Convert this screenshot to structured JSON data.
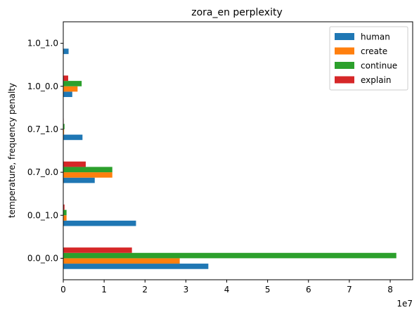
{
  "chart_data": {
    "type": "bar",
    "orientation": "horizontal",
    "title": "zora_en perplexity",
    "xlabel": "",
    "ylabel": "temperature, frequency penalty",
    "x_offset_label": "1e7",
    "x_ticks": [
      0,
      1,
      2,
      3,
      4,
      5,
      6,
      7,
      8
    ],
    "xlim": [
      0,
      8.55
    ],
    "categories": [
      "0.0_0.0",
      "0.0_1.0",
      "0.7_0.0",
      "0.7_1.0",
      "1.0_0.0",
      "1.0_1.0"
    ],
    "series": [
      {
        "name": "human",
        "color": "#1f77b4",
        "values": [
          3.55,
          1.78,
          0.77,
          0.47,
          0.22,
          0.13
        ]
      },
      {
        "name": "create",
        "color": "#ff7f0e",
        "values": [
          2.85,
          0.08,
          1.2,
          0.02,
          0.35,
          0.0
        ]
      },
      {
        "name": "continue",
        "color": "#2ca02c",
        "values": [
          8.15,
          0.08,
          1.2,
          0.03,
          0.45,
          0.0
        ]
      },
      {
        "name": "explain",
        "color": "#d62728",
        "values": [
          1.68,
          0.03,
          0.55,
          0.01,
          0.12,
          0.0
        ]
      }
    ],
    "legend_position": "top-right",
    "grid": false
  }
}
